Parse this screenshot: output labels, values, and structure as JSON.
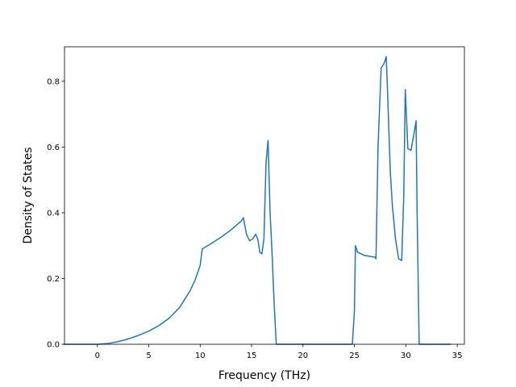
{
  "chart_data": {
    "type": "line",
    "title": "",
    "xlabel": "Frequency (THz)",
    "ylabel": "Density of States",
    "xlim": [
      -3.2,
      35.7
    ],
    "ylim": [
      0,
      0.905
    ],
    "xticks": [
      0,
      5,
      10,
      15,
      20,
      25,
      30,
      35
    ],
    "yticks": [
      0.0,
      0.2,
      0.4,
      0.6,
      0.8
    ],
    "ytick_labels": [
      "0.0",
      "0.2",
      "0.4",
      "0.6",
      "0.8"
    ],
    "grid": false,
    "legend": "none",
    "series": [
      {
        "color": "#1f77b4",
        "x": [
          -3.3,
          -1.0,
          0.0,
          1.0,
          2.0,
          3.0,
          4.0,
          5.0,
          6.0,
          7.0,
          8.0,
          9.0,
          9.5,
          10.0,
          10.2,
          11.0,
          12.0,
          13.0,
          14.0,
          14.2,
          14.5,
          14.8,
          15.1,
          15.4,
          15.6,
          15.8,
          16.0,
          16.2,
          16.4,
          16.6,
          16.8,
          17.0,
          17.2,
          17.4,
          18.0,
          20.0,
          22.0,
          24.0,
          24.8,
          25.0,
          25.1,
          25.3,
          26.0,
          27.0,
          27.1,
          27.3,
          27.6,
          27.9,
          28.1,
          28.3,
          28.5,
          28.7,
          29.0,
          29.3,
          29.6,
          29.8,
          29.95,
          30.2,
          30.5,
          30.8,
          31.0,
          31.1,
          31.3,
          32.0,
          34.4
        ],
        "y": [
          0.0,
          0.0,
          0.0,
          0.002,
          0.008,
          0.016,
          0.027,
          0.04,
          0.057,
          0.08,
          0.112,
          0.162,
          0.195,
          0.24,
          0.29,
          0.305,
          0.325,
          0.348,
          0.375,
          0.385,
          0.335,
          0.315,
          0.32,
          0.335,
          0.32,
          0.28,
          0.275,
          0.32,
          0.55,
          0.62,
          0.4,
          0.27,
          0.12,
          0.0,
          0.0,
          0.0,
          0.0,
          0.0,
          0.0,
          0.1,
          0.3,
          0.28,
          0.27,
          0.265,
          0.26,
          0.6,
          0.84,
          0.855,
          0.875,
          0.7,
          0.52,
          0.42,
          0.32,
          0.26,
          0.255,
          0.45,
          0.775,
          0.595,
          0.59,
          0.64,
          0.68,
          0.4,
          0.0,
          0.0,
          0.0
        ]
      }
    ]
  }
}
